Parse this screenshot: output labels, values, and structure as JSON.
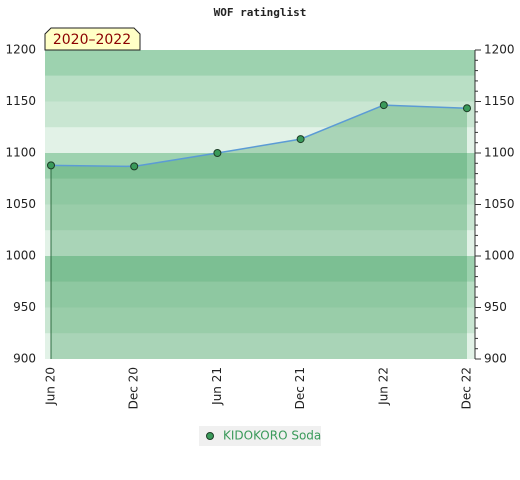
{
  "chart_data": {
    "type": "area",
    "title": "WOF ratinglist",
    "annotation": "2020–2022",
    "categories": [
      "Jun 20",
      "Dec 20",
      "Jun 21",
      "Dec 21",
      "Jun 22",
      "Dec 22"
    ],
    "series": [
      {
        "name": "KIDOKORO Soda",
        "color": "#5b9bd5",
        "marker_color": "#3a9a5a",
        "fill_color": "#3f9e5e",
        "values": [
          1088,
          1087,
          1100,
          1113.5,
          1146.5,
          1143.5
        ]
      }
    ],
    "ylim": [
      900,
      1200
    ],
    "yticks": [
      900,
      950,
      1000,
      1050,
      1100,
      1150,
      1200
    ],
    "y2lim": [
      900,
      1200
    ],
    "y2ticks": [
      900,
      950,
      1000,
      1050,
      1100,
      1150,
      1200
    ],
    "legend": "bottom"
  }
}
